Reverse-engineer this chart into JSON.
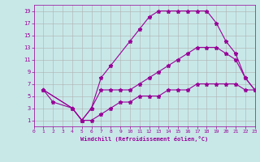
{
  "xlabel": "Windchill (Refroidissement éolien,°C)",
  "background_color": "#c8e8e8",
  "line_color": "#990099",
  "grid_color": "#b0b0b0",
  "xlim": [
    0,
    23
  ],
  "ylim": [
    0,
    20
  ],
  "xticks": [
    0,
    1,
    2,
    3,
    4,
    5,
    6,
    7,
    8,
    9,
    10,
    11,
    12,
    13,
    14,
    15,
    16,
    17,
    18,
    19,
    20,
    21,
    22,
    23
  ],
  "yticks": [
    1,
    3,
    5,
    7,
    9,
    11,
    13,
    15,
    17,
    19
  ],
  "line1_x": [
    1,
    2,
    4,
    5,
    5,
    6,
    7,
    8,
    10,
    11,
    12,
    13,
    14,
    15,
    16,
    17,
    18,
    19,
    20,
    21,
    22,
    23
  ],
  "line1_y": [
    6,
    4,
    3,
    1,
    1,
    3,
    8,
    10,
    14,
    16,
    18,
    19,
    19,
    19,
    19,
    19,
    19,
    17,
    14,
    12,
    8,
    6
  ],
  "line2_x": [
    1,
    4,
    5,
    6,
    7,
    8,
    9,
    10,
    11,
    12,
    13,
    14,
    15,
    16,
    17,
    18,
    19,
    20,
    21,
    22,
    23
  ],
  "line2_y": [
    6,
    3,
    1,
    3,
    6,
    6,
    6,
    6,
    7,
    8,
    9,
    10,
    11,
    12,
    13,
    13,
    13,
    12,
    11,
    8,
    6
  ],
  "line3_x": [
    1,
    4,
    5,
    6,
    7,
    8,
    9,
    10,
    11,
    12,
    13,
    14,
    15,
    16,
    17,
    18,
    19,
    20,
    21,
    22,
    23
  ],
  "line3_y": [
    6,
    3,
    1,
    1,
    2,
    3,
    4,
    4,
    5,
    5,
    5,
    6,
    6,
    6,
    7,
    7,
    7,
    7,
    7,
    6,
    6
  ]
}
